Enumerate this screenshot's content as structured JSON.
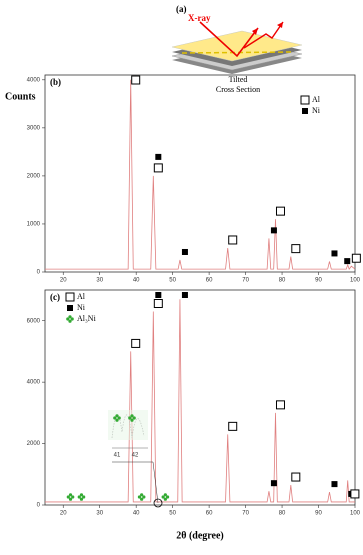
{
  "schematic": {
    "label": "(a)",
    "beam": "X-ray",
    "caption_1": "Tilted",
    "caption_2": "Cross Section"
  },
  "chart_data": [
    {
      "type": "line",
      "panel": "(b)",
      "y_label": "Counts",
      "xlim": [
        15,
        100
      ],
      "ylim": [
        0,
        4100
      ],
      "xticks": [
        20,
        30,
        40,
        50,
        60,
        70,
        80,
        90,
        100
      ],
      "yticks": [
        0,
        1000,
        2000,
        3000,
        4000
      ],
      "color": "#e08080",
      "phases": [
        "Al",
        "Ni"
      ],
      "x": [
        15,
        37.8,
        38.5,
        39.2,
        44,
        44.7,
        45.4,
        51.5,
        52,
        52.5,
        64.5,
        65.1,
        65.7,
        75.9,
        76.4,
        76.9,
        77.7,
        78.2,
        78.7,
        81.9,
        82.4,
        82.9,
        92.5,
        93,
        93.5,
        97.6,
        98,
        98.4,
        99,
        100
      ],
      "values": [
        60,
        60,
        4000,
        60,
        60,
        2000,
        60,
        60,
        250,
        60,
        60,
        500,
        60,
        60,
        700,
        60,
        60,
        1100,
        60,
        60,
        320,
        60,
        60,
        220,
        60,
        60,
        150,
        60,
        120,
        60
      ],
      "peaks": [
        {
          "x": 38.5,
          "phase": "Al"
        },
        {
          "x": 44.7,
          "phase": "Al"
        },
        {
          "x": 44.7,
          "phase": "Ni"
        },
        {
          "x": 52,
          "phase": "Ni"
        },
        {
          "x": 65.1,
          "phase": "Al"
        },
        {
          "x": 76.4,
          "phase": "Ni"
        },
        {
          "x": 78.2,
          "phase": "Al"
        },
        {
          "x": 82.4,
          "phase": "Al"
        },
        {
          "x": 93,
          "phase": "Ni"
        },
        {
          "x": 96.5,
          "phase": "Ni"
        },
        {
          "x": 99,
          "phase": "Al"
        }
      ]
    },
    {
      "type": "line",
      "panel": "(c)",
      "x_label": "2θ (degree)",
      "xlim": [
        15,
        100
      ],
      "ylim": [
        0,
        7000
      ],
      "xticks": [
        20,
        30,
        40,
        50,
        60,
        70,
        80,
        90,
        100
      ],
      "yticks": [
        0,
        2000,
        4000,
        6000
      ],
      "color": "#e08080",
      "phases": [
        "Al",
        "Ni",
        "Al₃Ni"
      ],
      "x": [
        15,
        37.8,
        38.5,
        39.2,
        44,
        44.7,
        45.4,
        51.4,
        52,
        52.6,
        64.5,
        65.1,
        65.7,
        75.9,
        76.4,
        76.9,
        77.7,
        78.2,
        78.7,
        81.9,
        82.4,
        82.9,
        92.5,
        93,
        93.5,
        97.6,
        98,
        98.4,
        100
      ],
      "values": [
        100,
        100,
        5000,
        100,
        100,
        6300,
        100,
        100,
        6700,
        100,
        100,
        2300,
        100,
        100,
        450,
        100,
        100,
        3000,
        100,
        100,
        650,
        100,
        100,
        420,
        100,
        100,
        800,
        100,
        100
      ],
      "peaks": [
        {
          "x": 38.5,
          "phase": "Al"
        },
        {
          "x": 44.7,
          "phase": "Al"
        },
        {
          "x": 44.7,
          "phase": "Ni"
        },
        {
          "x": 52,
          "phase": "Ni"
        },
        {
          "x": 65.1,
          "phase": "Al"
        },
        {
          "x": 76.4,
          "phase": "Ni"
        },
        {
          "x": 78.2,
          "phase": "Al"
        },
        {
          "x": 82.4,
          "phase": "Al"
        },
        {
          "x": 93,
          "phase": "Ni"
        },
        {
          "x": 97.6,
          "phase": "Ni"
        },
        {
          "x": 98.6,
          "phase": "Al"
        },
        {
          "x": 22,
          "phase": "Al₃Ni"
        },
        {
          "x": 25,
          "phase": "Al₃Ni"
        },
        {
          "x": 41.5,
          "phase": "Al₃Ni"
        },
        {
          "x": 48,
          "phase": "Al₃Ni"
        }
      ],
      "inset_xticks": [
        41,
        42
      ]
    }
  ]
}
